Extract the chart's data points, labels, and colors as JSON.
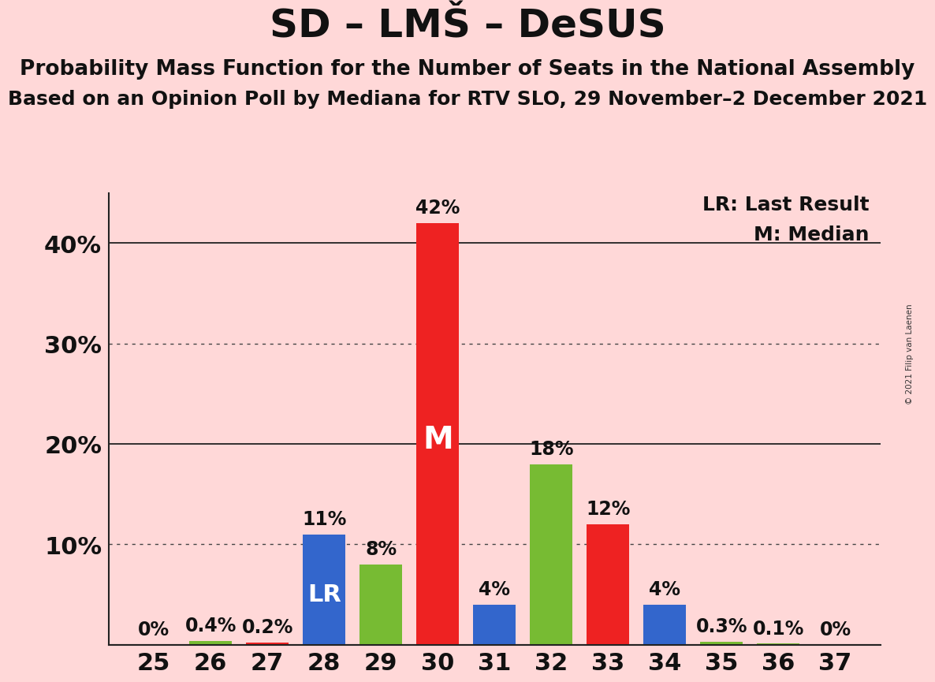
{
  "title": "SD – LMŠ – DeSUS",
  "subtitle1": "Probability Mass Function for the Number of Seats in the National Assembly",
  "subtitle2": "Based on an Opinion Poll by Mediana for RTV SLO, 29 November–2 December 2021",
  "copyright": "© 2021 Filip van Laenen",
  "seats": [
    25,
    26,
    27,
    28,
    29,
    30,
    31,
    32,
    33,
    34,
    35,
    36,
    37
  ],
  "values": [
    0.0,
    0.4,
    0.2,
    11.0,
    8.0,
    42.0,
    4.0,
    18.0,
    12.0,
    4.0,
    0.3,
    0.1,
    0.0
  ],
  "seat_colors": {
    "25": "#3366cc",
    "26": "#77bb33",
    "27": "#ee2222",
    "28": "#3366cc",
    "29": "#77bb33",
    "30": "#ee2222",
    "31": "#3366cc",
    "32": "#77bb33",
    "33": "#ee2222",
    "34": "#3366cc",
    "35": "#77bb33",
    "36": "#77bb33",
    "37": "#3366cc"
  },
  "background_color": "#ffd8d8",
  "ylim": [
    0,
    45
  ],
  "bar_width": 0.75,
  "title_fontsize": 36,
  "subtitle_fontsize": 19,
  "tick_fontsize": 22,
  "label_fontsize": 17,
  "legend_fontsize": 18,
  "lr_fontsize": 22,
  "m_fontsize": 28
}
